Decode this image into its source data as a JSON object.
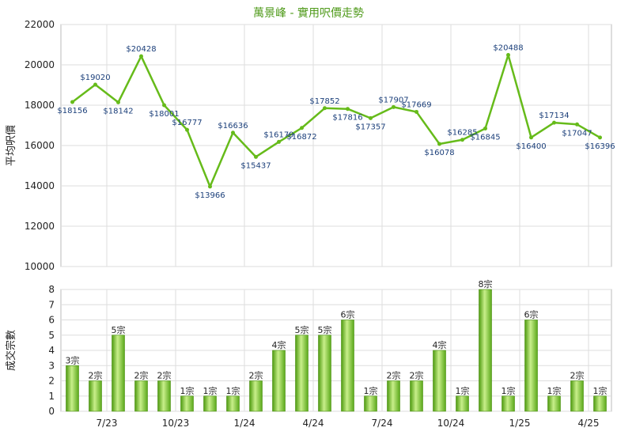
{
  "chart_data": [
    {
      "type": "line",
      "title": "萬景峰 - 實用呎價走勢",
      "ylabel": "平均呎價",
      "ylim": [
        10000,
        22000
      ],
      "yticks": [
        "22000",
        "20000",
        "18000",
        "16000",
        "14000",
        "12000",
        "10000"
      ],
      "color": "#66bb1a",
      "grid": true,
      "values": [
        18156,
        19020,
        18142,
        20428,
        18001,
        16777,
        13966,
        16636,
        15437,
        16179,
        16872,
        17852,
        17816,
        17357,
        17907,
        17669,
        16078,
        16285,
        16845,
        20488,
        16400,
        17134,
        17047,
        16396
      ],
      "labels": [
        "$18156",
        "$19020",
        "$18142",
        "$20428",
        "$18001",
        "$16777",
        "$13966",
        "$16636",
        "$15437",
        "$16179",
        "$16872",
        "$17852",
        "$17816",
        "$17357",
        "$17907",
        "$17669",
        "$16078",
        "$16285",
        "$16845",
        "$20488",
        "$16400",
        "$17134",
        "$17047",
        "$16396"
      ]
    },
    {
      "type": "bar",
      "ylabel": "成交宗數",
      "ylim": [
        0,
        8
      ],
      "yticks": [
        "8",
        "7",
        "6",
        "5",
        "4",
        "3",
        "2",
        "1",
        "0"
      ],
      "color": "#66bb1a",
      "grid": true,
      "values": [
        3,
        2,
        5,
        2,
        2,
        1,
        1,
        1,
        2,
        4,
        5,
        5,
        6,
        1,
        2,
        2,
        4,
        1,
        8,
        1,
        6,
        1,
        2,
        1
      ],
      "labels": [
        "3宗",
        "2宗",
        "5宗",
        "2宗",
        "2宗",
        "1宗",
        "1宗",
        "1宗",
        "2宗",
        "4宗",
        "5宗",
        "5宗",
        "6宗",
        "1宗",
        "2宗",
        "2宗",
        "4宗",
        "1宗",
        "8宗",
        "1宗",
        "6宗",
        "1宗",
        "2宗",
        "1宗"
      ],
      "xticks": [
        "7/23",
        "10/23",
        "1/24",
        "4/24",
        "7/24",
        "10/24",
        "1/25",
        "4/25"
      ]
    }
  ]
}
